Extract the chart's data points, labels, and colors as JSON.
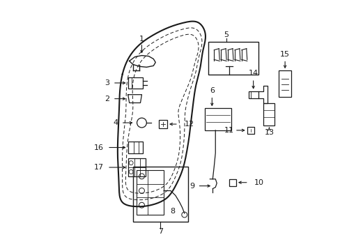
{
  "bg_color": "#ffffff",
  "fig_width": 4.89,
  "fig_height": 3.6,
  "dpi": 100,
  "line_color": "#1a1a1a",
  "label_fontsize": 8.0
}
